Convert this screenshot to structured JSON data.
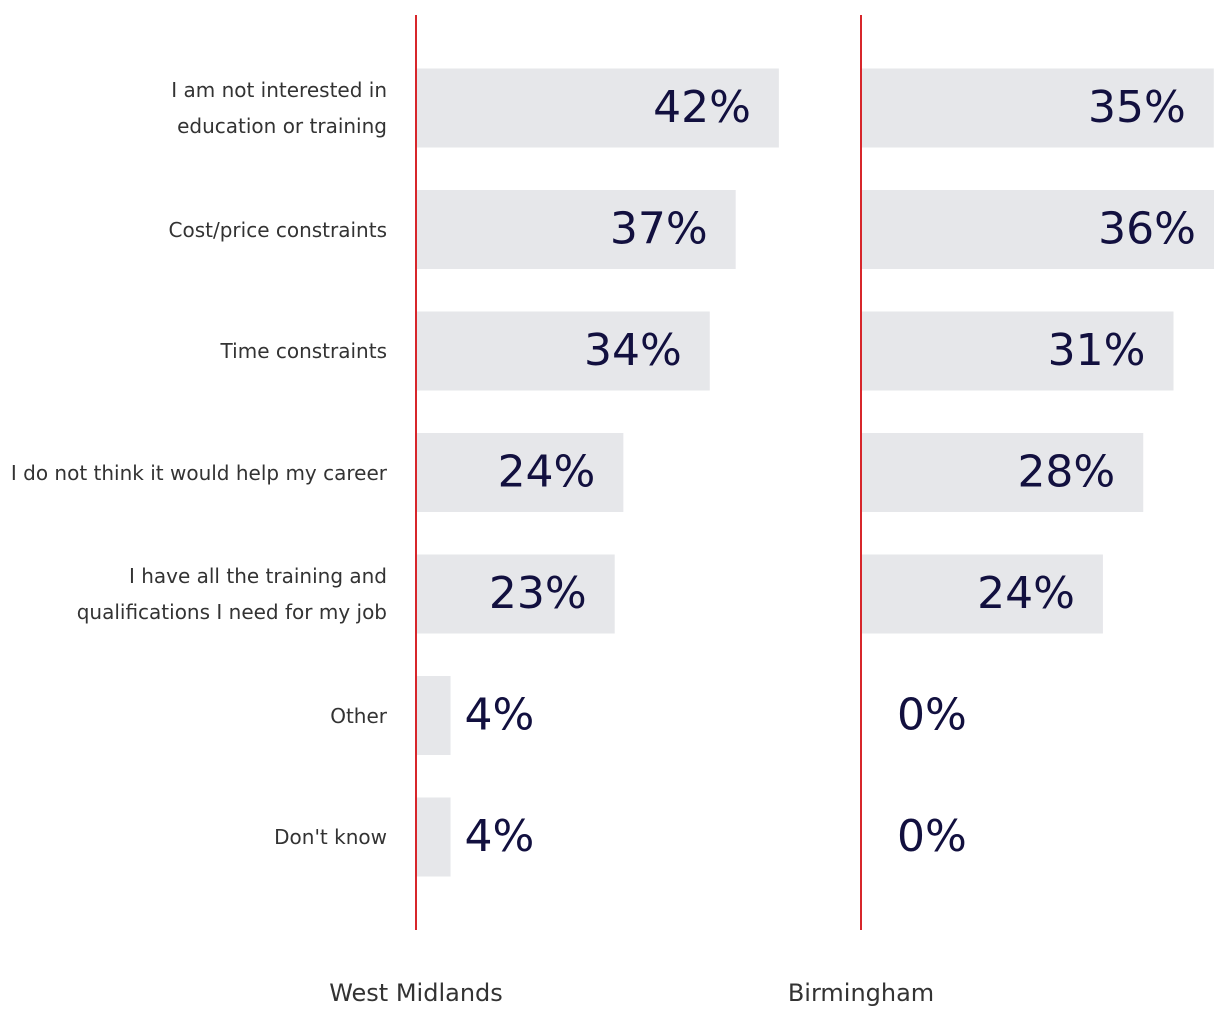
{
  "chart_data": {
    "type": "bar",
    "orientation": "horizontal",
    "categories": [
      "I am not interested in education or training",
      "Cost/price constraints",
      "Time constraints",
      "I do not think it would help my career",
      "I have all the training and qualifications I need for my job",
      "Other",
      "Don't know"
    ],
    "series": [
      {
        "name": "West Midlands",
        "color": "#e6e7ea",
        "values": [
          42,
          37,
          34,
          24,
          23,
          4,
          4
        ],
        "value_labels": [
          "42%",
          "37%",
          "34%",
          "24%",
          "23%",
          "4%",
          "4%"
        ]
      },
      {
        "name": "Birmingham",
        "color": "#e6e7ea",
        "values": [
          35,
          36,
          31,
          28,
          24,
          0,
          0
        ],
        "value_labels": [
          "35%",
          "36%",
          "31%",
          "28%",
          "24%",
          "0%",
          "0%"
        ]
      }
    ],
    "baseline_color": "#d7262b",
    "label_color": "#12103f"
  }
}
